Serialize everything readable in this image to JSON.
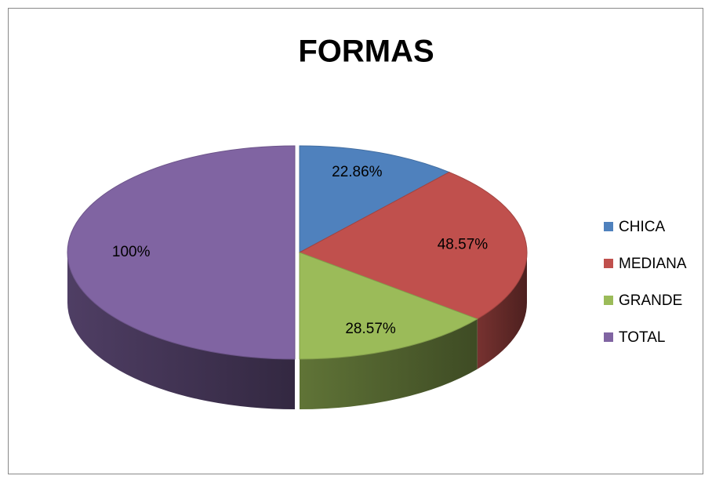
{
  "chart_data": {
    "type": "pie",
    "title": "FORMAS",
    "categories": [
      "CHICA",
      "MEDIANA",
      "GRANDE",
      "TOTAL"
    ],
    "values": [
      22.86,
      48.57,
      28.57,
      100
    ],
    "value_labels": [
      "22.86%",
      "48.57%",
      "28.57%",
      "100%"
    ],
    "colors": [
      "#4f81bd",
      "#c0504d",
      "#9bbb59",
      "#8064a2"
    ],
    "legend": "right"
  }
}
